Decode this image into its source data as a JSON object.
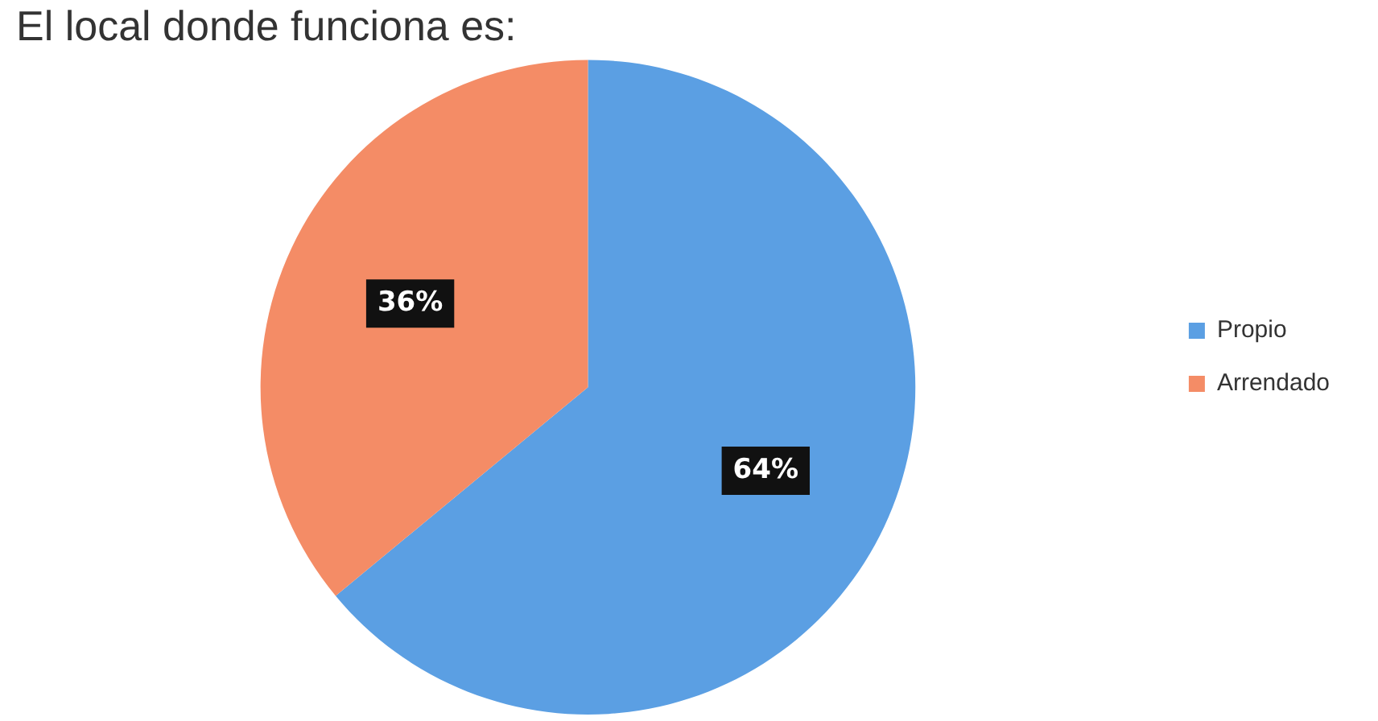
{
  "chart_data": {
    "type": "pie",
    "title": "El local donde funciona es:",
    "categories": [
      "Propio",
      "Arrendado"
    ],
    "values": [
      64,
      36
    ],
    "colors": [
      "#5b9fe3",
      "#f48c66"
    ],
    "value_labels": [
      "64%",
      "36%"
    ],
    "legend": "right"
  }
}
